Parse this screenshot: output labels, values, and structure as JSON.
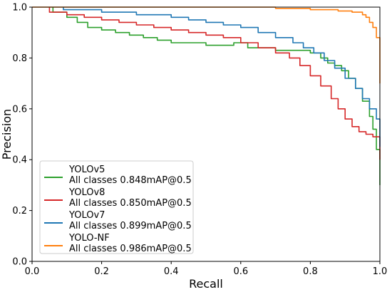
{
  "chart_data": {
    "type": "line",
    "xlabel": "Recall",
    "ylabel": "Precision",
    "xlim": [
      0.0,
      1.0
    ],
    "ylim": [
      0.0,
      1.0
    ],
    "xticks": [
      "0.0",
      "0.2",
      "0.4",
      "0.6",
      "0.8",
      "1.0"
    ],
    "yticks": [
      "0.0",
      "0.2",
      "0.4",
      "0.6",
      "0.8",
      "1.0"
    ],
    "grid": false,
    "legend_position": "lower-left",
    "series": [
      {
        "name": "YOLOv5",
        "legend_line2": "All classes 0.848mAP@0.5",
        "color": "#2ca02c",
        "x": [
          0.06,
          0.06,
          0.1,
          0.13,
          0.16,
          0.2,
          0.24,
          0.28,
          0.32,
          0.36,
          0.4,
          0.45,
          0.5,
          0.55,
          0.58,
          0.62,
          0.66,
          0.7,
          0.74,
          0.77,
          0.8,
          0.83,
          0.85,
          0.87,
          0.89,
          0.91,
          0.93,
          0.95,
          0.97,
          0.98,
          0.99,
          1.0
        ],
        "y": [
          1.0,
          0.98,
          0.96,
          0.94,
          0.92,
          0.91,
          0.9,
          0.89,
          0.88,
          0.87,
          0.86,
          0.86,
          0.85,
          0.85,
          0.86,
          0.84,
          0.84,
          0.83,
          0.83,
          0.83,
          0.82,
          0.8,
          0.78,
          0.77,
          0.75,
          0.72,
          0.68,
          0.63,
          0.57,
          0.52,
          0.44,
          0.3
        ]
      },
      {
        "name": "YOLOv8",
        "legend_line2": "All classes 0.850mAP@0.5",
        "color": "#d62728",
        "x": [
          0.05,
          0.05,
          0.1,
          0.15,
          0.2,
          0.25,
          0.3,
          0.35,
          0.4,
          0.45,
          0.5,
          0.55,
          0.6,
          0.65,
          0.7,
          0.74,
          0.77,
          0.8,
          0.83,
          0.86,
          0.88,
          0.9,
          0.92,
          0.94,
          0.96,
          0.98,
          1.0,
          1.0
        ],
        "y": [
          1.0,
          0.98,
          0.97,
          0.96,
          0.95,
          0.94,
          0.93,
          0.92,
          0.91,
          0.9,
          0.89,
          0.88,
          0.86,
          0.84,
          0.82,
          0.8,
          0.77,
          0.73,
          0.69,
          0.64,
          0.6,
          0.56,
          0.53,
          0.51,
          0.5,
          0.49,
          0.49,
          0.4
        ]
      },
      {
        "name": "YOLOv7",
        "legend_line2": "All classes 0.899mAP@0.5",
        "color": "#1f77b4",
        "x": [
          0.09,
          0.09,
          0.15,
          0.2,
          0.25,
          0.3,
          0.35,
          0.4,
          0.45,
          0.5,
          0.55,
          0.6,
          0.65,
          0.7,
          0.75,
          0.78,
          0.81,
          0.84,
          0.87,
          0.9,
          0.93,
          0.95,
          0.97,
          0.99,
          1.0,
          1.0
        ],
        "y": [
          1.0,
          0.99,
          0.99,
          0.98,
          0.98,
          0.97,
          0.97,
          0.96,
          0.95,
          0.94,
          0.93,
          0.92,
          0.9,
          0.88,
          0.86,
          0.84,
          0.82,
          0.79,
          0.76,
          0.72,
          0.68,
          0.64,
          0.6,
          0.56,
          0.53,
          0.45
        ]
      },
      {
        "name": "YOLO-NF",
        "legend_line2": "All classes 0.986mAP@0.5",
        "color": "#ff7f0e",
        "x": [
          0.0,
          0.1,
          0.2,
          0.3,
          0.4,
          0.5,
          0.6,
          0.7,
          0.8,
          0.88,
          0.92,
          0.95,
          0.96,
          0.97,
          0.98,
          0.99,
          1.0,
          1.0
        ],
        "y": [
          1.0,
          1.0,
          1.0,
          1.0,
          1.0,
          1.0,
          1.0,
          0.995,
          0.99,
          0.985,
          0.98,
          0.97,
          0.96,
          0.94,
          0.92,
          0.88,
          0.8,
          0.7
        ]
      }
    ]
  }
}
